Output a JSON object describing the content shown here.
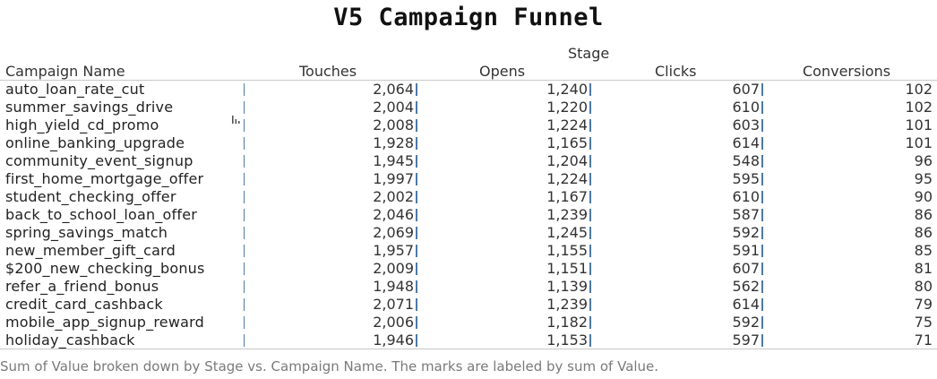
{
  "chart_data": {
    "type": "table",
    "title": "V5 Campaign Funnel",
    "column_group_label": "Stage",
    "row_header": "Campaign Name",
    "stages": [
      "Touches",
      "Opens",
      "Clicks",
      "Conversions"
    ],
    "rows": [
      {
        "campaign": "auto_loan_rate_cut",
        "values": [
          "2,064",
          "1,240",
          "607",
          "102"
        ]
      },
      {
        "campaign": "summer_savings_drive",
        "values": [
          "2,004",
          "1,220",
          "610",
          "102"
        ]
      },
      {
        "campaign": "high_yield_cd_promo",
        "values": [
          "2,008",
          "1,224",
          "603",
          "101"
        ]
      },
      {
        "campaign": "online_banking_upgrade",
        "values": [
          "1,928",
          "1,165",
          "614",
          "101"
        ]
      },
      {
        "campaign": "community_event_signup",
        "values": [
          "1,945",
          "1,204",
          "548",
          "96"
        ]
      },
      {
        "campaign": "first_home_mortgage_offer",
        "values": [
          "1,997",
          "1,224",
          "595",
          "95"
        ]
      },
      {
        "campaign": "student_checking_offer",
        "values": [
          "2,002",
          "1,167",
          "610",
          "90"
        ]
      },
      {
        "campaign": "back_to_school_loan_offer",
        "values": [
          "2,046",
          "1,239",
          "587",
          "86"
        ]
      },
      {
        "campaign": "spring_savings_match",
        "values": [
          "2,069",
          "1,245",
          "592",
          "86"
        ]
      },
      {
        "campaign": "new_member_gift_card",
        "values": [
          "1,957",
          "1,155",
          "591",
          "85"
        ]
      },
      {
        "campaign": "$200_new_checking_bonus",
        "values": [
          "2,009",
          "1,151",
          "607",
          "81"
        ]
      },
      {
        "campaign": "refer_a_friend_bonus",
        "values": [
          "1,948",
          "1,139",
          "562",
          "80"
        ]
      },
      {
        "campaign": "credit_card_cashback",
        "values": [
          "2,071",
          "1,239",
          "614",
          "79"
        ]
      },
      {
        "campaign": "mobile_app_signup_reward",
        "values": [
          "2,006",
          "1,182",
          "592",
          "75"
        ]
      },
      {
        "campaign": "holiday_cashback",
        "values": [
          "1,946",
          "1,153",
          "597",
          "71"
        ]
      }
    ],
    "caption": "Sum of Value broken down by Stage vs. Campaign Name.  The marks are labeled by sum of Value."
  },
  "colors": {
    "bar": "#4e79a7",
    "caption": "#7a7a7a",
    "rule": "#c8c8c8"
  },
  "icons": {
    "row_tooltip": "mini-bar-chart-icon"
  }
}
